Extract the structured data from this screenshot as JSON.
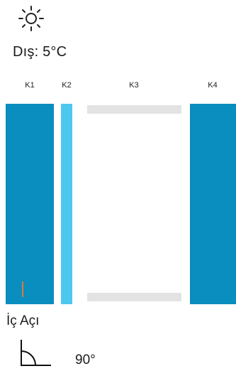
{
  "weather": {
    "icon": "sun-icon",
    "outside_temp": "Dış: 5°C"
  },
  "layers": [
    {
      "label": "K1",
      "type": "solid",
      "color": "#0a8dbf"
    },
    {
      "label": "K2",
      "type": "solid",
      "color": "#4cc8f0"
    },
    {
      "label": "K3",
      "type": "gap",
      "color": "#e3e3e3"
    },
    {
      "label": "K4",
      "type": "solid",
      "color": "#0a8dbf"
    }
  ],
  "marker_color": "#e07a3a",
  "inner_angle": {
    "label": "İç Açı",
    "icon": "angle-icon",
    "value": "90°"
  }
}
